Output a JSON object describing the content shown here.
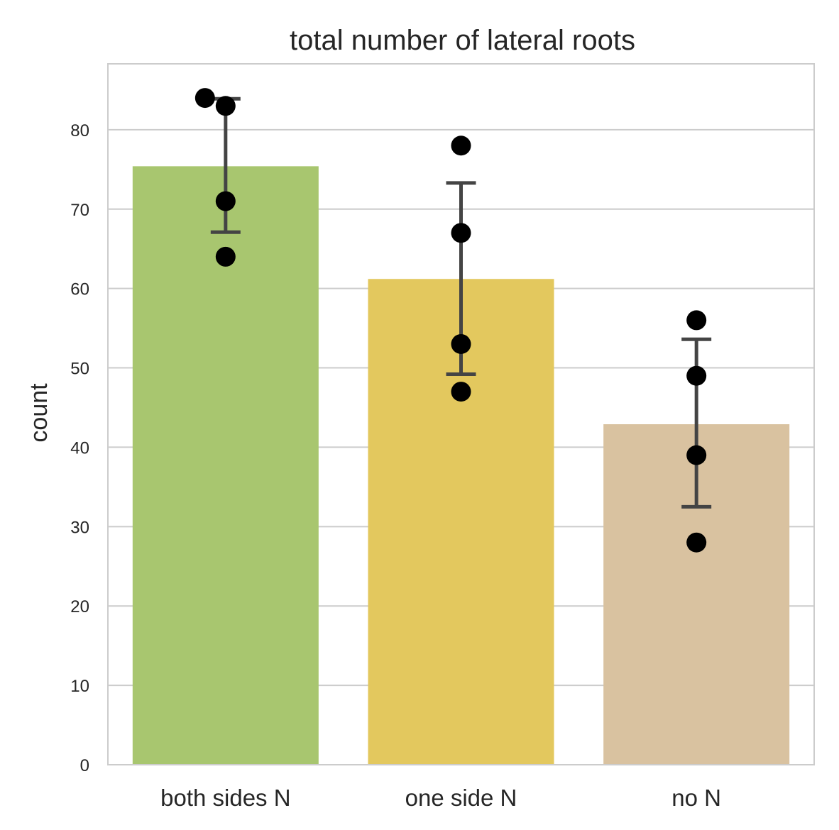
{
  "chart_data": {
    "type": "bar",
    "title": "total number of lateral roots",
    "xlabel": "",
    "ylabel": "count",
    "categories": [
      "both sides N",
      "one side N",
      "no N"
    ],
    "values": [
      75.4,
      61.2,
      42.9
    ],
    "error_bars": [
      {
        "low": 67.1,
        "high": 83.9
      },
      {
        "low": 49.2,
        "high": 73.3
      },
      {
        "low": 32.5,
        "high": 53.6
      }
    ],
    "points": [
      [
        84,
        83,
        71,
        64
      ],
      [
        78,
        67,
        53,
        47
      ],
      [
        56,
        49,
        39,
        28
      ]
    ],
    "bar_colors": [
      "#a8c66f",
      "#e3c85e",
      "#d9c2a0"
    ],
    "ylim": [
      0,
      88.3
    ],
    "yticks": [
      "0",
      "10",
      "20",
      "30",
      "40",
      "50",
      "60",
      "70",
      "80"
    ],
    "grid": true,
    "legend": "none"
  }
}
